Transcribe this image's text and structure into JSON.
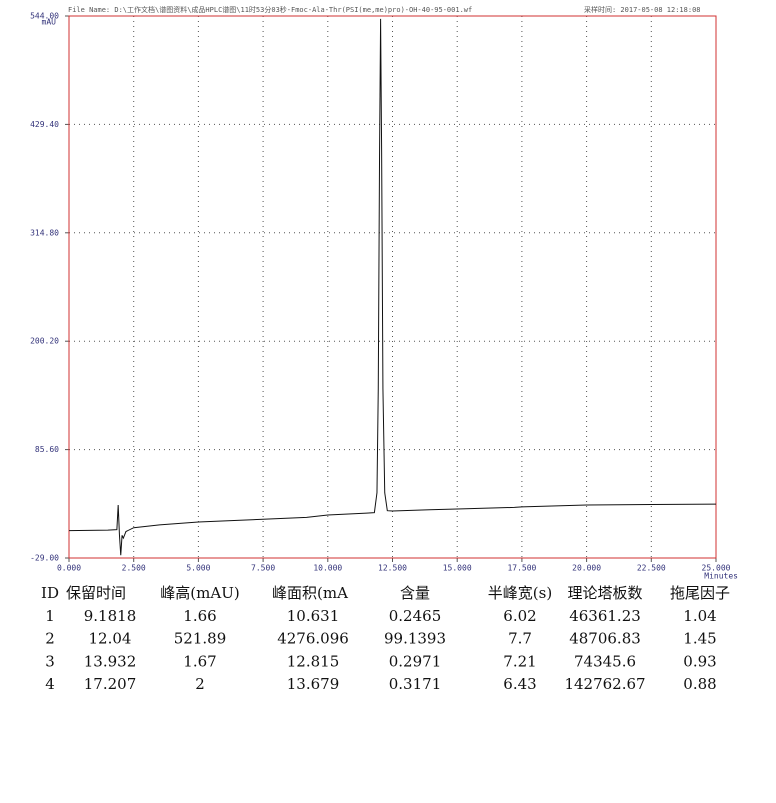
{
  "chart_data": {
    "type": "line",
    "file_name": "File Name: D:\\工作文档\\谱图资料\\成品HPLC谱图\\11时53分03秒-Fmoc-Ala-Thr(PSI(me,me)pro)-OH-40-95-001.wf",
    "sample_time": "采样时间: 2017-05-08 12:18:08",
    "y_unit": "mAU",
    "x_unit": "Minutes",
    "xlim": [
      0,
      25
    ],
    "ylim": [
      -29,
      544
    ],
    "xticks": [
      {
        "value": 0,
        "label": "0.000"
      },
      {
        "value": 2.5,
        "label": "2.500"
      },
      {
        "value": 5,
        "label": "5.000"
      },
      {
        "value": 7.5,
        "label": "7.500"
      },
      {
        "value": 10,
        "label": "10.000"
      },
      {
        "value": 12.5,
        "label": "12.500"
      },
      {
        "value": 15,
        "label": "15.000"
      },
      {
        "value": 17.5,
        "label": "17.500"
      },
      {
        "value": 20,
        "label": "20.000"
      },
      {
        "value": 22.5,
        "label": "22.500"
      },
      {
        "value": 25,
        "label": "25.000"
      }
    ],
    "yticks": [
      {
        "value": -29,
        "label": "-29.00"
      },
      {
        "value": 85.6,
        "label": "85.60"
      },
      {
        "value": 200.2,
        "label": "200.20"
      },
      {
        "value": 314.8,
        "label": "314.80"
      },
      {
        "value": 429.4,
        "label": "429.40"
      },
      {
        "value": 544,
        "label": "544.00"
      }
    ],
    "grid": "dotted",
    "frame_color": "#d03030",
    "series": [
      {
        "color": "#111111",
        "x": [
          0,
          1.5,
          1.85,
          1.9,
          1.95,
          2.0,
          2.05,
          2.1,
          2.2,
          2.5,
          3.5,
          5,
          7.5,
          9.18,
          10,
          11.5,
          11.8,
          11.9,
          11.95,
          12.0,
          12.04,
          12.08,
          12.13,
          12.2,
          12.3,
          12.5,
          13.93,
          15,
          17.21,
          17.5,
          20,
          22.5,
          25
        ],
        "values": [
          0,
          0.5,
          1,
          27,
          -5,
          -26,
          -5,
          -8,
          -1,
          3,
          6,
          9,
          12,
          14,
          16.5,
          18.5,
          19,
          40,
          150,
          400,
          541,
          400,
          150,
          40,
          21,
          20.7,
          22,
          22.8,
          24.5,
          25,
          27,
          27.5,
          28
        ]
      }
    ]
  },
  "table": {
    "header": [
      "ID",
      "保留时间",
      "峰高(mAU)",
      "峰面积(mA",
      "含量",
      "半峰宽(s)",
      "理论塔板数",
      "拖尾因子"
    ],
    "rows": [
      [
        "1",
        "9.1818",
        "1.66",
        "10.631",
        "0.2465",
        "6.02",
        "46361.23",
        "1.04"
      ],
      [
        "2",
        "12.04",
        "521.89",
        "4276.096",
        "99.1393",
        "7.7",
        "48706.83",
        "1.45"
      ],
      [
        "3",
        "13.932",
        "1.67",
        "12.815",
        "0.2971",
        "7.21",
        "74345.6",
        "0.93"
      ],
      [
        "4",
        "17.207",
        "2",
        "13.679",
        "0.3171",
        "6.43",
        "142762.67",
        "0.88"
      ]
    ]
  }
}
